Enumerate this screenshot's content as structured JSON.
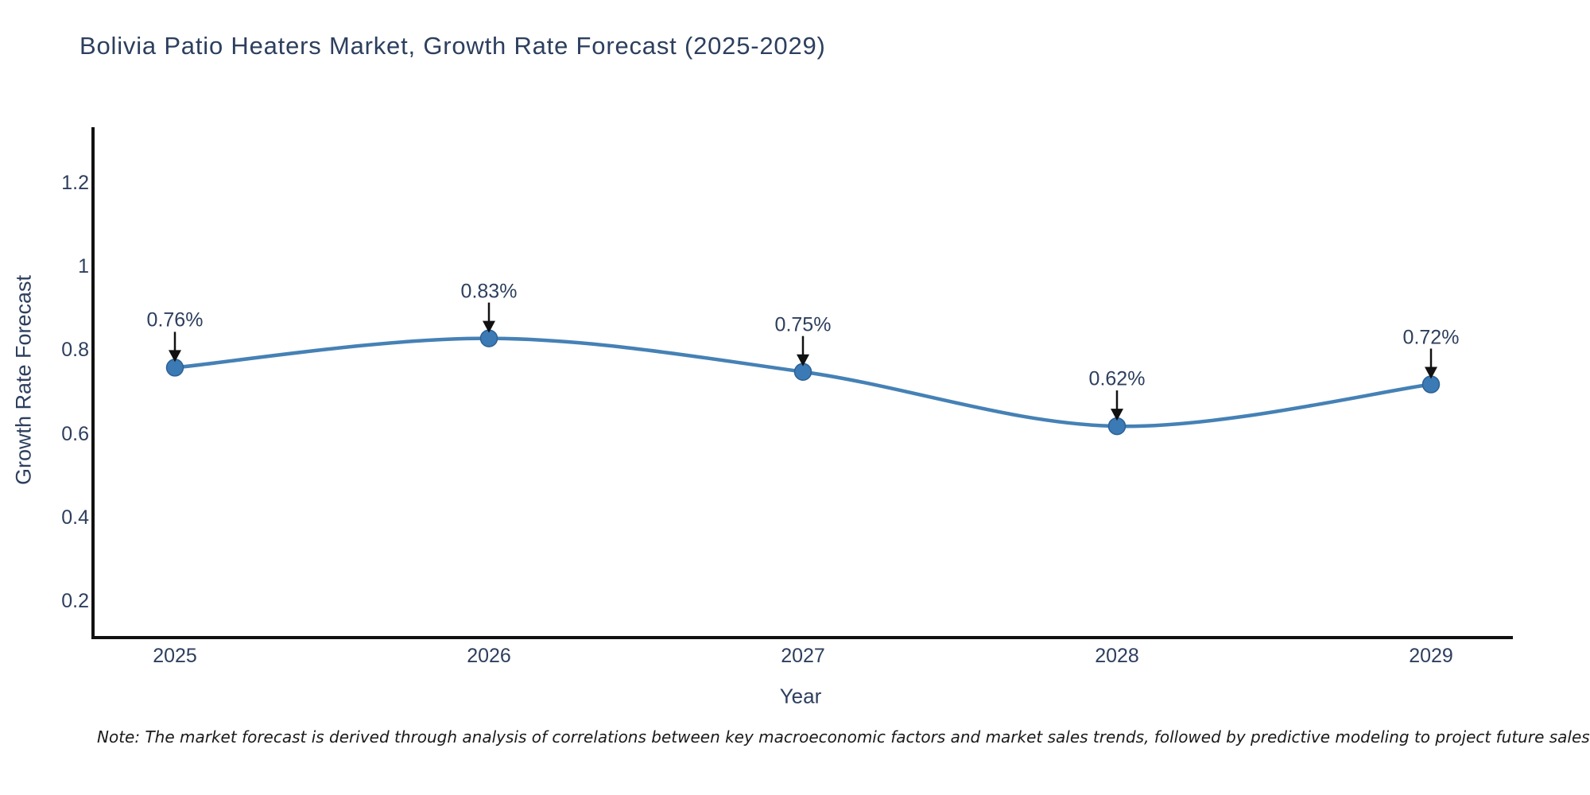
{
  "title": "Bolivia Patio Heaters Market, Growth Rate Forecast (2025-2029)",
  "note": "Note: The market forecast is derived through analysis of correlations between key macroeconomic factors and market sales trends, followed by predictive modeling to project future sales",
  "chart_data": {
    "type": "line",
    "line_shape": "spline",
    "title": "Bolivia Patio Heaters Market, Growth Rate Forecast (2025-2029)",
    "xlabel": "Year",
    "ylabel": "Growth Rate Forecast",
    "categories": [
      "2025",
      "2026",
      "2027",
      "2028",
      "2029"
    ],
    "values": [
      0.76,
      0.83,
      0.75,
      0.62,
      0.72
    ],
    "point_labels": [
      "0.76%",
      "0.83%",
      "0.75%",
      "0.62%",
      "0.72%"
    ],
    "ytick_values": [
      0.2,
      0.4,
      0.6,
      0.8,
      1,
      1.2
    ],
    "ytick_labels": [
      "0.2",
      "0.4",
      "0.6",
      "0.8",
      "1",
      "1.2"
    ],
    "ylim": [
      0.11,
      1.34
    ],
    "grid": false,
    "legend_position": "none",
    "markers": true,
    "annotation_style": "value label with downward arrow above each point",
    "colors": {
      "line": "#4581b5",
      "marker": "#3c7ab6",
      "marker_edge": "#2c6195",
      "axis": "#111111",
      "text": "#2d3f5e",
      "annotation_arrow": "#111111",
      "title": "#2d3f5e",
      "background": "#ffffff"
    }
  }
}
